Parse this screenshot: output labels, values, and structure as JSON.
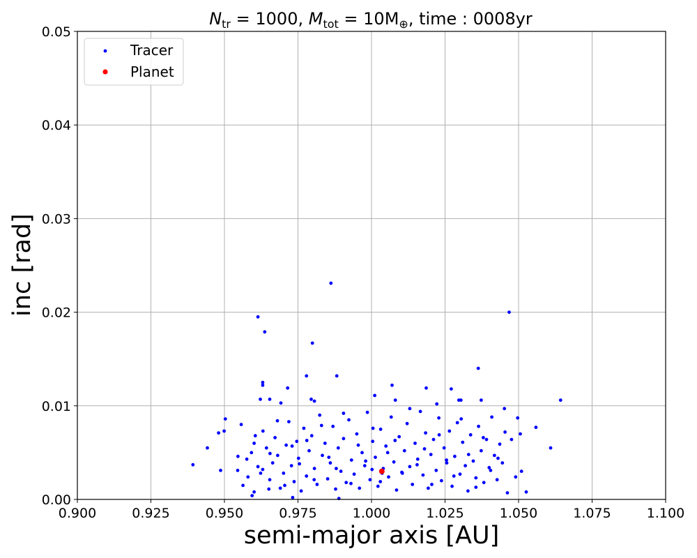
{
  "chart_data": {
    "type": "scatter",
    "title_parts": {
      "n_sym": "N",
      "n_sub": "tr",
      "n_eq": " = 1000, ",
      "m_sym": "M",
      "m_sub": "tot",
      "m_eq": " = 10M",
      "m_sub2": "⊕",
      "time": ", time : 0008yr"
    },
    "xlabel": "semi-major axis [AU]",
    "ylabel": "inc [rad]",
    "xlim": [
      0.9,
      1.1
    ],
    "ylim": [
      0.0,
      0.05
    ],
    "xticks": [
      "0.900",
      "0.925",
      "0.950",
      "0.975",
      "1.000",
      "1.025",
      "1.050",
      "1.075",
      "1.100"
    ],
    "yticks": [
      "0.00",
      "0.01",
      "0.02",
      "0.03",
      "0.04",
      "0.05"
    ],
    "grid": true,
    "legend": {
      "position": "top-left",
      "entries": [
        {
          "name": "Tracer",
          "color": "#0000ff"
        },
        {
          "name": "Planet",
          "color": "#ff0000"
        }
      ]
    },
    "series": [
      {
        "name": "Tracer",
        "color": "#0000ff",
        "points": [
          [
            0.9862,
            0.0231
          ],
          [
            0.9614,
            0.0195
          ],
          [
            0.9637,
            0.0179
          ],
          [
            0.9799,
            0.0167
          ],
          [
            1.0468,
            0.02
          ],
          [
            1.0363,
            0.014
          ],
          [
            0.9779,
            0.0132
          ],
          [
            0.9882,
            0.0132
          ],
          [
            0.963,
            0.0125
          ],
          [
            0.963,
            0.0122
          ],
          [
            1.007,
            0.0122
          ],
          [
            1.0186,
            0.0119
          ],
          [
            1.0271,
            0.0118
          ],
          [
            0.9715,
            0.0119
          ],
          [
            1.0643,
            0.0106
          ],
          [
            1.0373,
            0.0106
          ],
          [
            1.0304,
            0.0106
          ],
          [
            1.0297,
            0.0106
          ],
          [
            0.9622,
            0.0107
          ],
          [
            0.9654,
            0.0107
          ],
          [
            0.9692,
            0.0103
          ],
          [
            0.9795,
            0.0107
          ],
          [
            0.9806,
            0.0105
          ],
          [
            1.0011,
            0.0111
          ],
          [
            1.0081,
            0.0106
          ],
          [
            1.0222,
            0.0102
          ],
          [
            1.0452,
            0.0097
          ],
          [
            1.0497,
            0.0087
          ],
          [
            1.0559,
            0.0077
          ],
          [
            1.0506,
            0.007
          ],
          [
            1.0476,
            0.0064
          ],
          [
            1.0609,
            0.0055
          ],
          [
            0.9503,
            0.0086
          ],
          [
            0.9499,
            0.0073
          ],
          [
            0.948,
            0.0071
          ],
          [
            0.9442,
            0.0055
          ],
          [
            0.9393,
            0.0037
          ],
          [
            0.9487,
            0.0031
          ],
          [
            1.0526,
            0.0008
          ],
          [
            1.051,
            0.003
          ],
          [
            1.049,
            0.0024
          ],
          [
            1.0462,
            0.0007
          ],
          [
            1.0036,
            0.0028
          ],
          [
            1.0002,
            0.0032
          ],
          [
            0.9889,
            0.0001
          ],
          [
            0.9732,
            0.0002
          ],
          [
            0.9594,
            0.0004
          ],
          [
            0.9601,
            0.0008
          ],
          [
            0.9651,
            0.0011
          ],
          [
            0.9563,
            0.0015
          ],
          [
            0.9545,
            0.0031
          ],
          [
            0.9546,
            0.0046
          ],
          [
            0.9557,
            0.008
          ],
          [
            0.9592,
            0.005
          ],
          [
            0.9576,
            0.0043
          ],
          [
            0.9601,
            0.006
          ],
          [
            0.9614,
            0.0035
          ],
          [
            0.9623,
            0.0028
          ],
          [
            0.9631,
            0.0073
          ],
          [
            0.9643,
            0.0055
          ],
          [
            0.9654,
            0.0021
          ],
          [
            0.9664,
            0.0039
          ],
          [
            0.9672,
            0.0066
          ],
          [
            0.9681,
            0.0047
          ],
          [
            0.969,
            0.0012
          ],
          [
            0.9701,
            0.0028
          ],
          [
            0.971,
            0.0058
          ],
          [
            0.9719,
            0.0083
          ],
          [
            0.9728,
            0.0036
          ],
          [
            0.9737,
            0.0019
          ],
          [
            0.9746,
            0.0062
          ],
          [
            0.9752,
            0.0044
          ],
          [
            0.9761,
            0.0009
          ],
          [
            0.977,
            0.0076
          ],
          [
            0.9779,
            0.0025
          ],
          [
            0.9788,
            0.0052
          ],
          [
            0.9797,
            0.0068
          ],
          [
            0.9806,
            0.0033
          ],
          [
            0.9815,
            0.0016
          ],
          [
            0.9824,
            0.009
          ],
          [
            0.9833,
            0.0047
          ],
          [
            0.9842,
            0.006
          ],
          [
            0.9851,
            0.0022
          ],
          [
            0.986,
            0.0039
          ],
          [
            0.9869,
            0.0078
          ],
          [
            0.9878,
            0.0011
          ],
          [
            0.9887,
            0.0055
          ],
          [
            0.9896,
            0.003
          ],
          [
            0.9905,
            0.0065
          ],
          [
            0.9914,
            0.0018
          ],
          [
            0.9923,
            0.0085
          ],
          [
            0.9932,
            0.0042
          ],
          [
            0.9941,
            0.0027
          ],
          [
            0.995,
            0.007
          ],
          [
            0.9959,
            0.0012
          ],
          [
            0.9968,
            0.005
          ],
          [
            0.9977,
            0.0036
          ],
          [
            0.9986,
            0.0093
          ],
          [
            0.9995,
            0.0021
          ],
          [
            1.0004,
            0.0062
          ],
          [
            1.0013,
            0.0045
          ],
          [
            1.0022,
            0.0014
          ],
          [
            1.0031,
            0.0075
          ],
          [
            1.004,
            0.0033
          ],
          [
            1.0049,
            0.0057
          ],
          [
            1.0058,
            0.0024
          ],
          [
            1.0067,
            0.0088
          ],
          [
            1.0076,
            0.004
          ],
          [
            1.0085,
            0.001
          ],
          [
            1.0094,
            0.0067
          ],
          [
            1.0103,
            0.0029
          ],
          [
            1.0112,
            0.0052
          ],
          [
            1.0121,
            0.0081
          ],
          [
            1.013,
            0.0035
          ],
          [
            1.0139,
            0.0016
          ],
          [
            1.0148,
            0.006
          ],
          [
            1.0157,
            0.0043
          ],
          [
            1.0166,
            0.0094
          ],
          [
            1.0175,
            0.0026
          ],
          [
            1.0184,
            0.0071
          ],
          [
            1.0193,
            0.0012
          ],
          [
            1.0202,
            0.0048
          ],
          [
            1.0211,
            0.0064
          ],
          [
            1.022,
            0.0031
          ],
          [
            1.0229,
            0.0087
          ],
          [
            1.0238,
            0.002
          ],
          [
            1.0247,
            0.0055
          ],
          [
            1.0256,
            0.0039
          ],
          [
            1.0265,
            0.0073
          ],
          [
            1.0274,
            0.0014
          ],
          [
            1.0283,
            0.0046
          ],
          [
            1.0292,
            0.0082
          ],
          [
            1.0301,
            0.0027
          ],
          [
            1.031,
            0.0061
          ],
          [
            1.0319,
            0.0036
          ],
          [
            1.0328,
            0.0009
          ],
          [
            1.0337,
            0.0069
          ],
          [
            1.0346,
            0.0041
          ],
          [
            1.0355,
            0.0023
          ],
          [
            1.0364,
            0.0078
          ],
          [
            1.0373,
            0.0052
          ],
          [
            1.0382,
            0.0018
          ],
          [
            1.0391,
            0.0064
          ],
          [
            1.04,
            0.0034
          ],
          [
            1.0409,
            0.0088
          ],
          [
            1.0418,
            0.0047
          ],
          [
            1.0427,
            0.0021
          ],
          [
            1.0436,
            0.0059
          ],
          [
            1.0445,
            0.0039
          ],
          [
            1.0454,
            0.0072
          ],
          [
            0.958,
            0.0024
          ],
          [
            0.9605,
            0.0068
          ],
          [
            0.963,
            0.0032
          ],
          [
            0.9655,
            0.0049
          ],
          [
            0.968,
            0.0084
          ],
          [
            0.9705,
            0.0015
          ],
          [
            0.973,
            0.0057
          ],
          [
            0.9755,
            0.0038
          ],
          [
            0.978,
            0.0063
          ],
          [
            0.9805,
            0.0021
          ],
          [
            0.983,
            0.0079
          ],
          [
            0.9855,
            0.0045
          ],
          [
            0.988,
            0.0033
          ],
          [
            0.9905,
            0.0092
          ],
          [
            0.993,
            0.0017
          ],
          [
            0.9955,
            0.0058
          ],
          [
            0.998,
            0.0041
          ],
          [
            1.0005,
            0.0076
          ],
          [
            1.003,
            0.0019
          ],
          [
            1.0055,
            0.005
          ],
          [
            1.008,
            0.0063
          ],
          [
            1.0105,
            0.0028
          ],
          [
            1.013,
            0.0097
          ],
          [
            1.0155,
            0.0037
          ],
          [
            1.018,
            0.0054
          ],
          [
            1.0205,
            0.0016
          ],
          [
            1.023,
            0.0069
          ],
          [
            1.0255,
            0.0042
          ],
          [
            1.028,
            0.0025
          ],
          [
            1.0305,
            0.0086
          ],
          [
            1.033,
            0.0048
          ],
          [
            1.0355,
            0.0013
          ],
          [
            1.038,
            0.0066
          ],
          [
            1.0405,
            0.0031
          ],
          [
            1.043,
            0.0044
          ]
        ]
      },
      {
        "name": "Planet",
        "color": "#ff0000",
        "points": [
          [
            1.0035,
            0.003
          ]
        ]
      }
    ]
  }
}
